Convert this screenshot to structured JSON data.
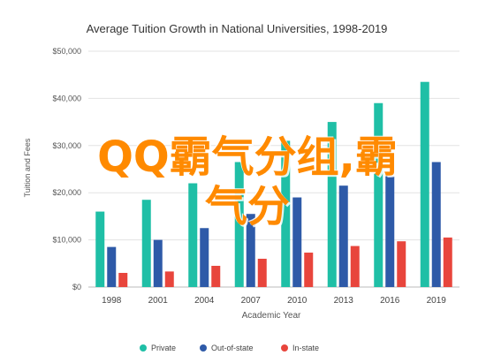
{
  "chart_data": {
    "type": "bar",
    "title": "Average Tuition Growth in National Universities, 1998-2019",
    "xlabel": "Academic Year",
    "ylabel": "Tuition and Fees",
    "categories": [
      "1998",
      "2001",
      "2004",
      "2007",
      "2010",
      "2013",
      "2016",
      "2019"
    ],
    "ylim": [
      0,
      50000
    ],
    "yticks": [
      0,
      10000,
      20000,
      30000,
      40000,
      50000
    ],
    "ytick_labels": [
      "$0",
      "$10,000",
      "$20,000",
      "$30,000",
      "$40,000",
      "$50,000"
    ],
    "grid": true,
    "legend_position": "bottom",
    "series": [
      {
        "name": "Private",
        "color": "#1fbfa6",
        "values": [
          16000,
          18500,
          22000,
          26500,
          31000,
          35000,
          39000,
          43500
        ]
      },
      {
        "name": "Out-of-state",
        "color": "#2e5aa8",
        "values": [
          8500,
          10000,
          12500,
          15500,
          19000,
          21500,
          23500,
          26500
        ]
      },
      {
        "name": "In-state",
        "color": "#e8453c",
        "values": [
          3000,
          3300,
          4500,
          6000,
          7300,
          8700,
          9700,
          10500
        ]
      }
    ]
  },
  "watermark": {
    "line1": "QQ霸气分组,霸",
    "line2": "气分"
  }
}
